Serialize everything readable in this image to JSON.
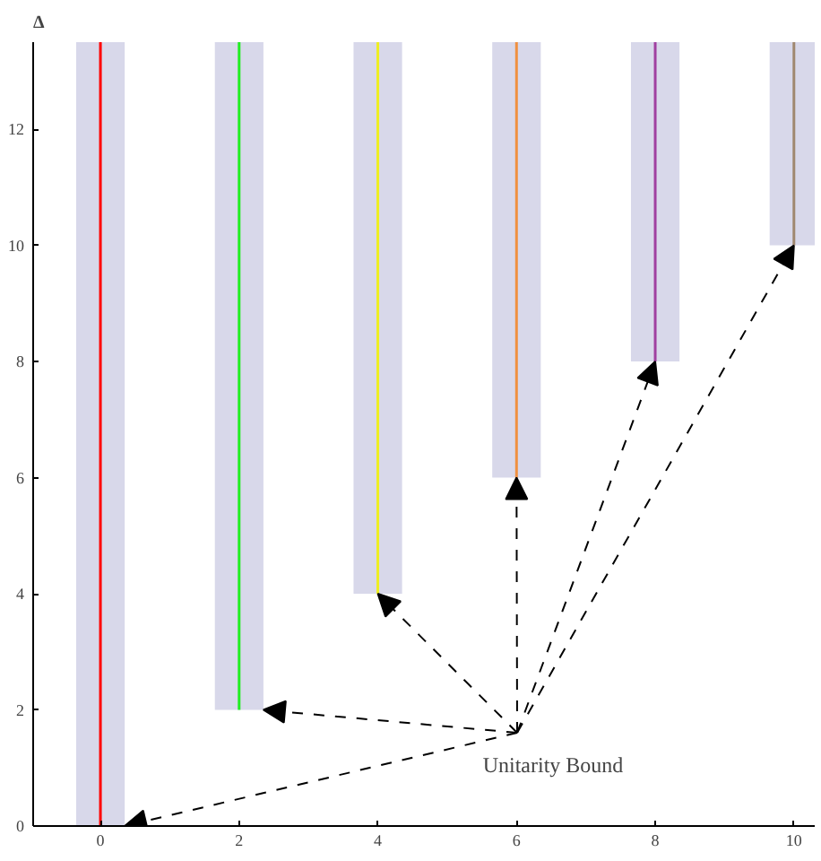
{
  "chart_data": {
    "type": "bar",
    "ylabel": "Δ",
    "xlim": [
      -0.97,
      10.3
    ],
    "ylim": [
      0,
      13.5
    ],
    "xticks": [
      0,
      2,
      4,
      6,
      8,
      10
    ],
    "yticks": [
      0,
      2,
      4,
      6,
      8,
      10,
      12
    ],
    "grid": false,
    "annotations": [
      {
        "text": "Unitarity Bound",
        "x": 6,
        "y": 6
      }
    ],
    "series": [
      {
        "x": [
          0,
          2,
          4,
          6,
          8,
          10
        ],
        "base": [
          0,
          2,
          4,
          6,
          8,
          10
        ],
        "values": [
          13.5,
          11.5,
          9.5,
          7.5,
          5.5,
          3.5
        ],
        "color": "#d8d8ea"
      },
      {
        "type": "line",
        "x": [
          0,
          0
        ],
        "values": [
          0,
          13.5
        ],
        "color": "#ff0000"
      },
      {
        "type": "line",
        "x": [
          2,
          2
        ],
        "values": [
          2,
          13.5
        ],
        "color": "#22ee22"
      },
      {
        "type": "line",
        "x": [
          4,
          4
        ],
        "values": [
          4,
          13.5
        ],
        "color": "#eeee22"
      },
      {
        "type": "line",
        "x": [
          6,
          6
        ],
        "values": [
          6,
          13.5
        ],
        "color": "#f09040"
      },
      {
        "type": "line",
        "x": [
          8,
          8
        ],
        "values": [
          8,
          13.5
        ],
        "color": "#a040a0"
      },
      {
        "type": "line",
        "x": [
          10,
          10
        ],
        "values": [
          10,
          13.5
        ],
        "color": "#a08870"
      }
    ]
  }
}
